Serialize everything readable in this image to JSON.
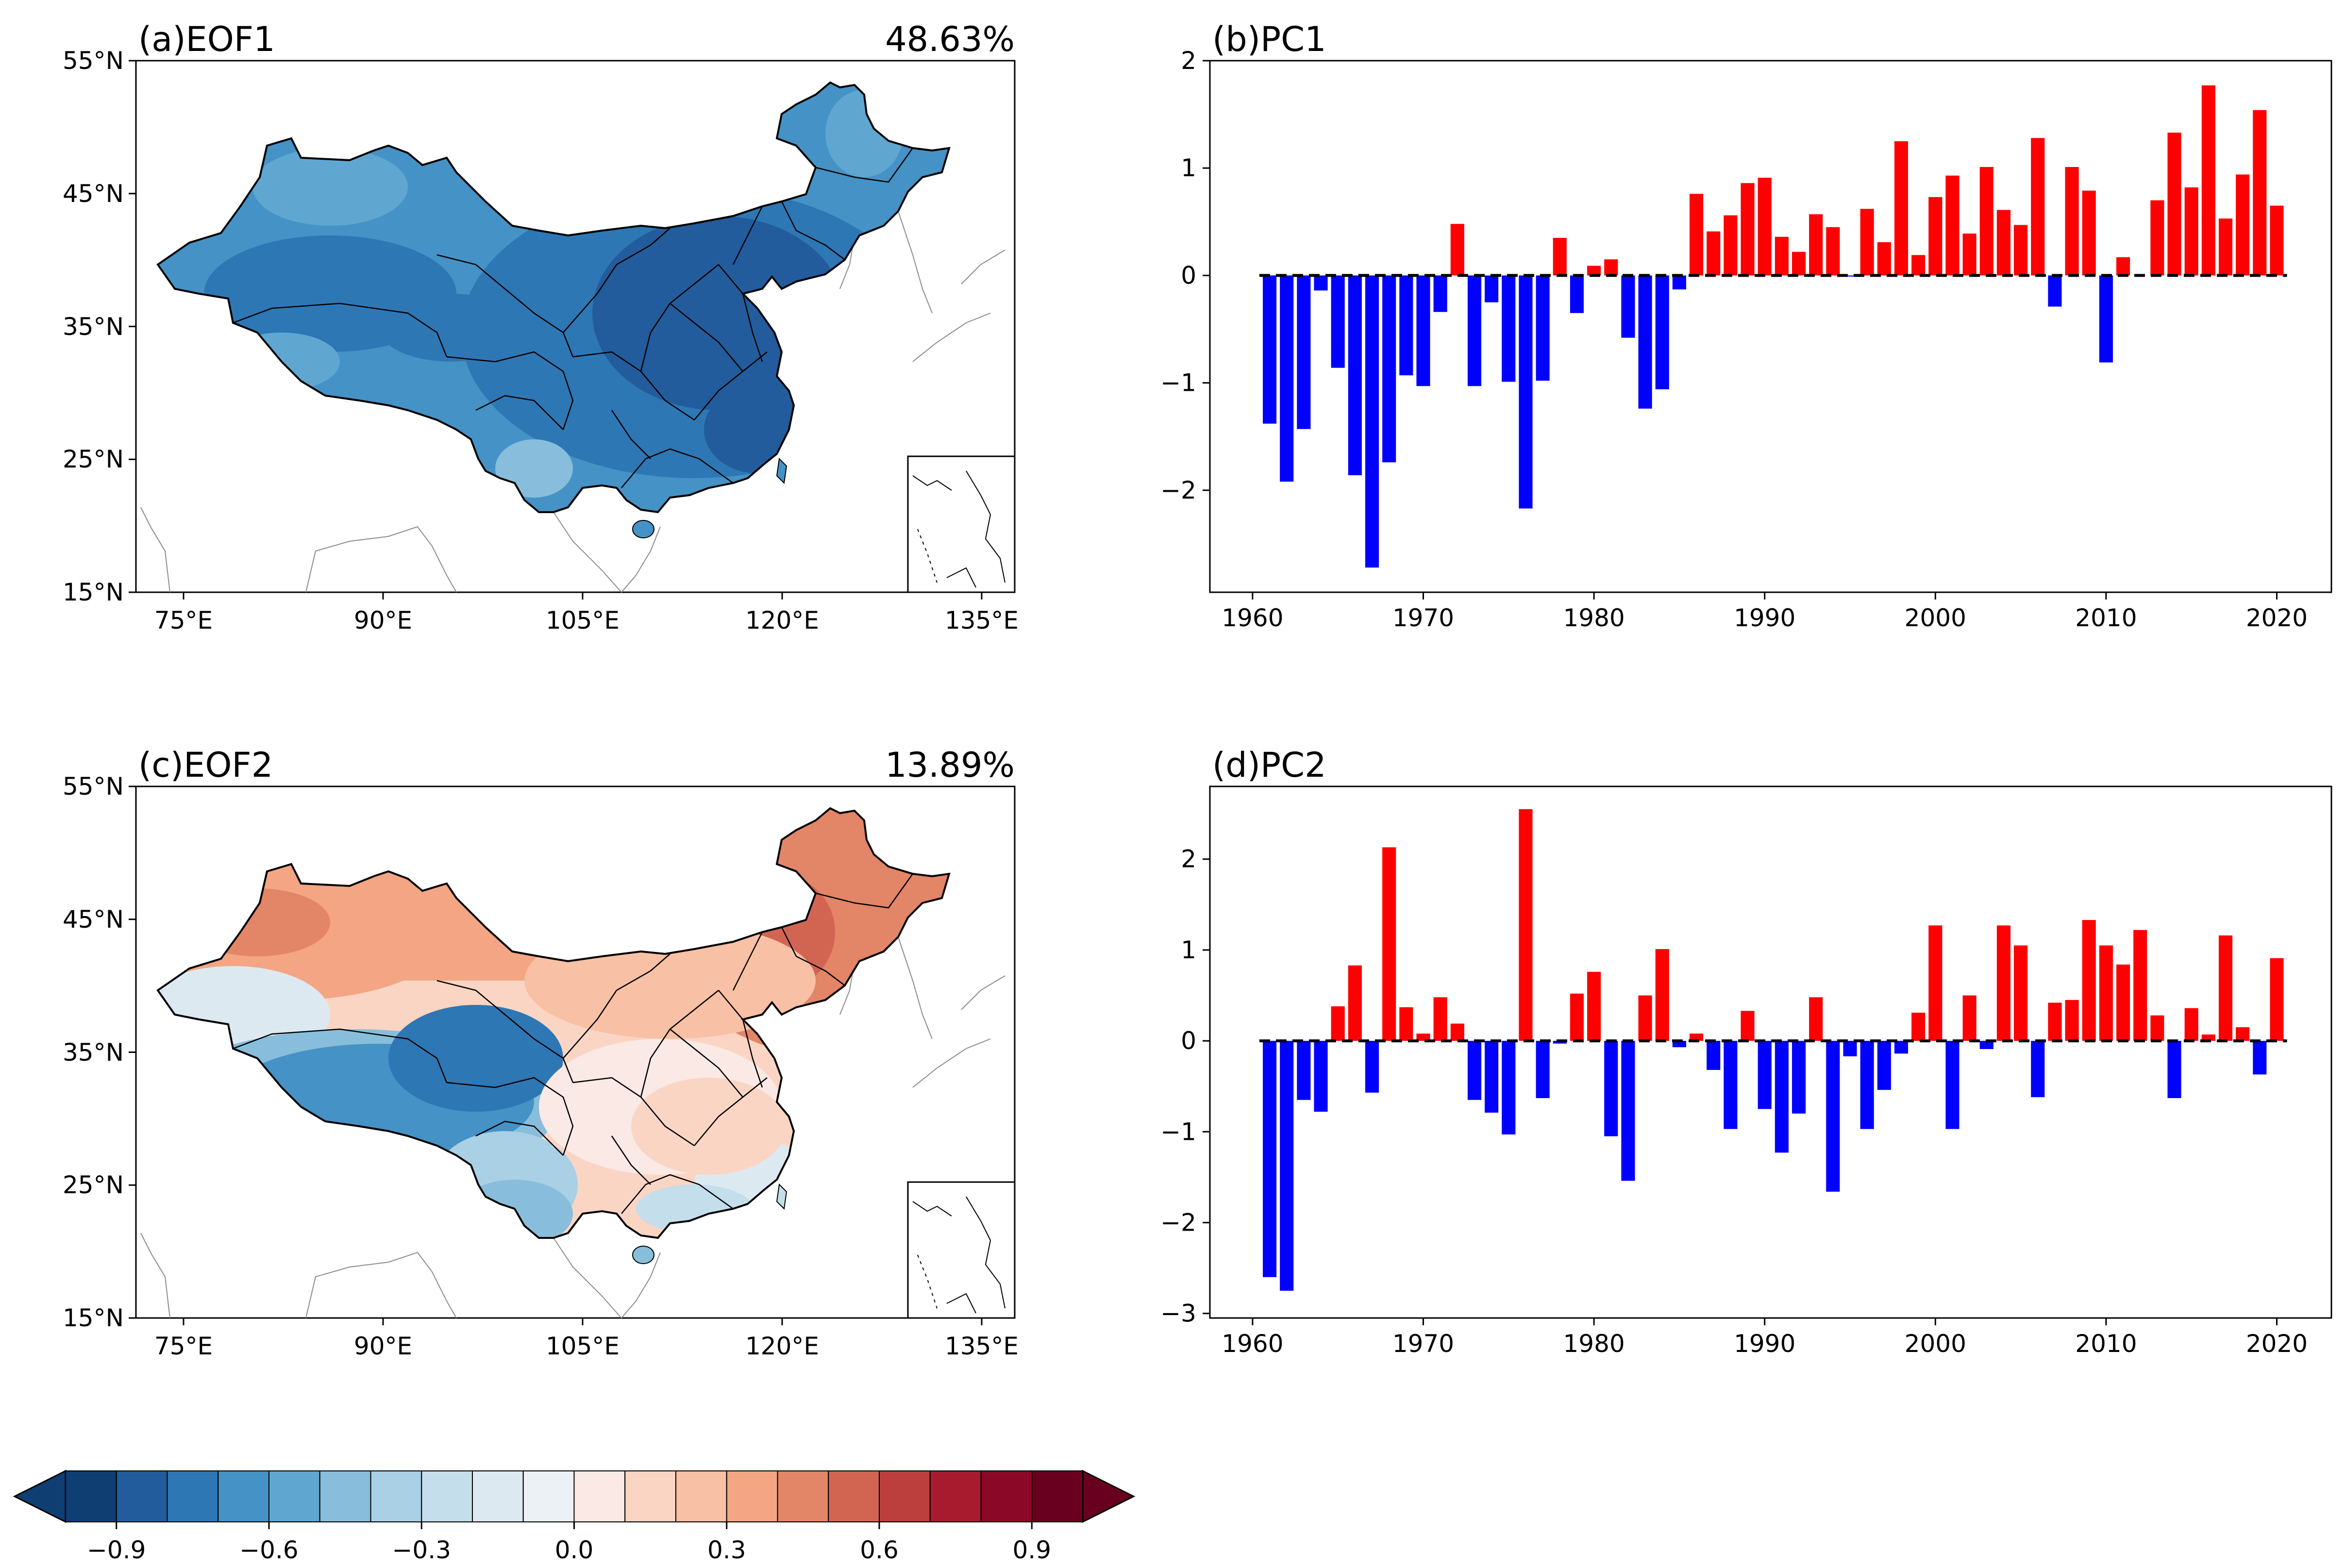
{
  "maps": [
    {
      "id": "eof1",
      "title": "(a)EOF1",
      "variance": "48.63%",
      "lat_ticks": [
        "55°N",
        "45°N",
        "35°N",
        "25°N",
        "15°N"
      ],
      "lon_ticks": [
        "75°E",
        "90°E",
        "105°E",
        "120°E",
        "135°E"
      ],
      "pattern": "uniform-negative"
    },
    {
      "id": "eof2",
      "title": "(c)EOF2",
      "variance": "13.89%",
      "lat_ticks": [
        "55°N",
        "45°N",
        "35°N",
        "25°N",
        "15°N"
      ],
      "lon_ticks": [
        "75°E",
        "90°E",
        "105°E",
        "120°E",
        "135°E"
      ],
      "pattern": "dipole"
    }
  ],
  "colorbar": {
    "colors": [
      "#0f3e72",
      "#225c9c",
      "#2e77b5",
      "#4592c6",
      "#5fa7d1",
      "#88bedb",
      "#a9d0e4",
      "#c4deeb",
      "#dde9f1",
      "#ecf1f5",
      "#fae9e4",
      "#fbd5c4",
      "#f8c0a4",
      "#f4a583",
      "#e38567",
      "#d26552",
      "#bc3f3d",
      "#a81b2f",
      "#8b0826",
      "#6a0020"
    ],
    "tick_labels": [
      "−0.9",
      "−0.6",
      "−0.3",
      "0.0",
      "0.3",
      "0.6",
      "0.9"
    ],
    "min": -1.0,
    "max": 1.0
  },
  "chart_data": [
    {
      "type": "bar",
      "title": "(b)PC1",
      "x_start": 1961,
      "values": [
        -1.38,
        -1.92,
        -1.43,
        -0.14,
        -0.86,
        -1.86,
        -2.72,
        -1.74,
        -0.93,
        -1.03,
        -0.34,
        0.48,
        -1.03,
        -0.25,
        -0.99,
        -2.17,
        -0.98,
        0.35,
        -0.35,
        0.09,
        0.15,
        -0.58,
        -1.24,
        -1.06,
        -0.13,
        0.76,
        0.41,
        0.56,
        0.86,
        0.91,
        0.36,
        0.22,
        0.57,
        0.45,
        -0.01,
        0.62,
        0.31,
        1.25,
        0.19,
        0.73,
        0.93,
        0.39,
        1.01,
        0.61,
        0.47,
        1.28,
        -0.29,
        1.01,
        0.79,
        -0.81,
        0.17,
        0.0,
        0.7,
        1.33,
        0.82,
        1.77,
        0.53,
        0.94,
        1.54,
        0.65
      ],
      "ylim": [
        -2.95,
        2.0
      ],
      "xlim": [
        1957.5,
        2023.2
      ],
      "y_ticks": [
        2,
        1,
        0,
        -1,
        -2
      ],
      "x_ticks": [
        1960,
        1970,
        1980,
        1990,
        2000,
        2010,
        2020
      ],
      "pos_color": "#ff0000",
      "neg_color": "#0000ff"
    },
    {
      "type": "bar",
      "title": "(d)PC2",
      "x_start": 1961,
      "values": [
        -2.6,
        -2.75,
        -0.65,
        -0.78,
        0.38,
        0.83,
        -0.57,
        2.13,
        0.37,
        0.08,
        0.48,
        0.19,
        -0.65,
        -0.79,
        -1.03,
        2.55,
        -0.63,
        -0.03,
        0.52,
        0.76,
        -1.05,
        -1.54,
        0.5,
        1.01,
        -0.07,
        0.08,
        -0.32,
        -0.97,
        0.33,
        -0.75,
        -1.23,
        -0.8,
        0.48,
        -1.66,
        -0.17,
        -0.97,
        -0.54,
        -0.14,
        0.31,
        1.27,
        -0.97,
        0.5,
        -0.09,
        1.27,
        1.05,
        -0.62,
        0.42,
        0.45,
        1.33,
        1.05,
        0.84,
        1.22,
        0.28,
        -0.63,
        0.36,
        0.07,
        1.16,
        0.15,
        -0.37,
        0.91
      ],
      "ylim": [
        -3.05,
        2.8
      ],
      "xlim": [
        1957.5,
        2023.2
      ],
      "y_ticks": [
        2,
        1,
        0,
        -1,
        -2,
        -3
      ],
      "x_ticks": [
        1960,
        1970,
        1980,
        1990,
        2000,
        2010,
        2020
      ],
      "pos_color": "#ff0000",
      "neg_color": "#0000ff"
    }
  ]
}
